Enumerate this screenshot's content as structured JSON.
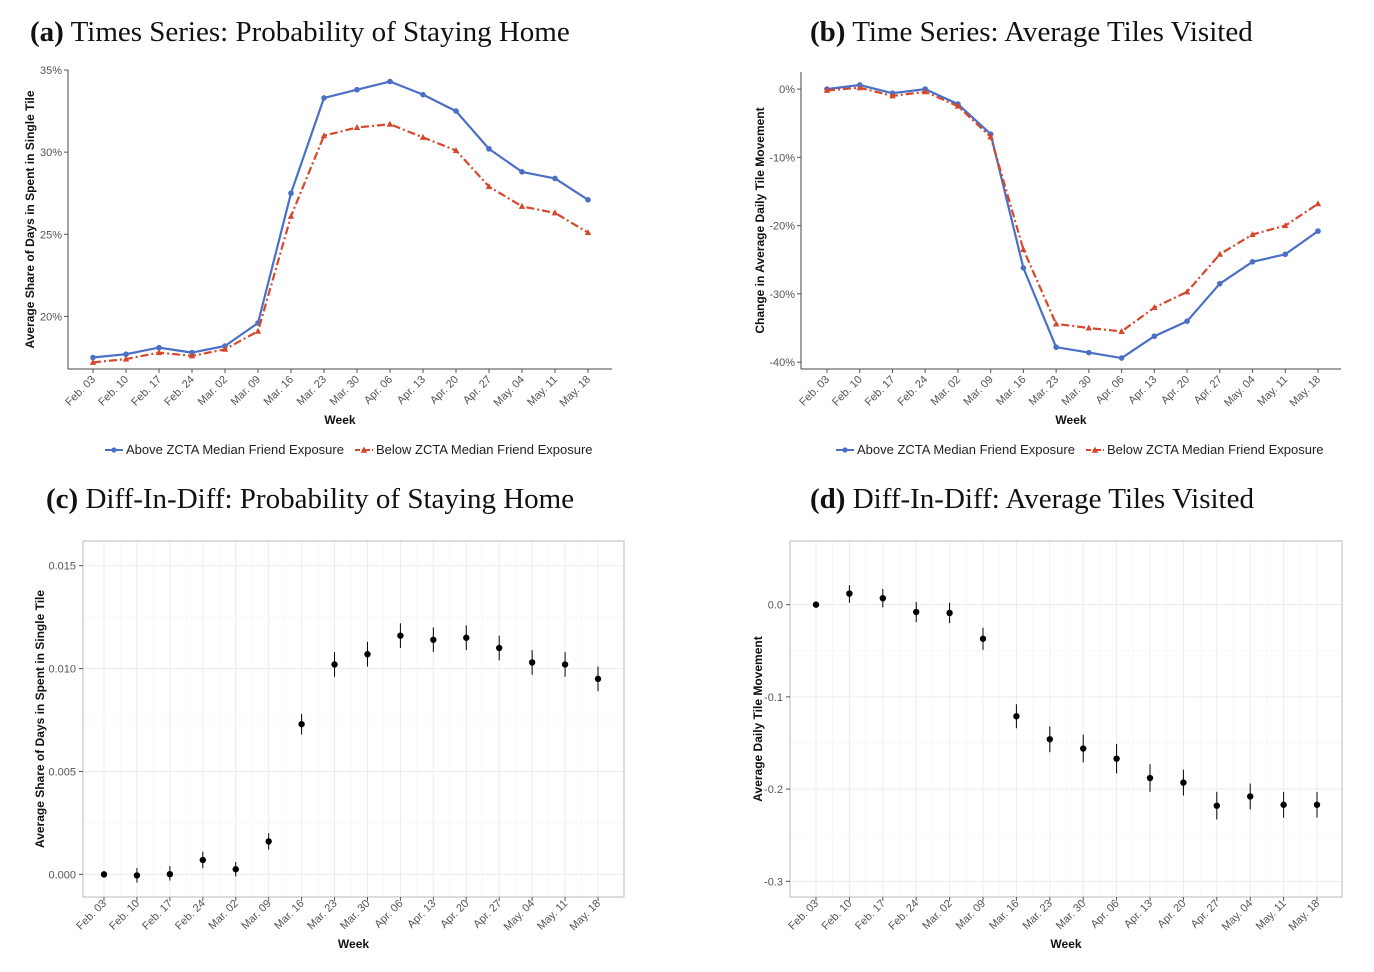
{
  "panels": [
    {
      "tag": "(a)",
      "title": "Times Series: Probability of Staying Home"
    },
    {
      "tag": "(b)",
      "title": "Time Series: Average Tiles Visited"
    },
    {
      "tag": "(c)",
      "title": "Diff-In-Diff: Probability of Staying Home"
    },
    {
      "tag": "(d)",
      "title": "Diff-In-Diff: Average Tiles Visited"
    }
  ],
  "legend": {
    "above": "Above ZCTA Median Friend Exposure",
    "below": "Below ZCTA Median Friend Exposure"
  },
  "colors": {
    "above": "#4a6fc7",
    "below": "#d6472b",
    "point": "#000000"
  },
  "chart_data": [
    {
      "type": "line",
      "categories": [
        "Feb. 03",
        "Feb. 10",
        "Feb. 17",
        "Feb. 24",
        "Mar. 02",
        "Mar. 09",
        "Mar. 16",
        "Mar. 23",
        "Mar. 30",
        "Apr. 06",
        "Apr. 13",
        "Apr. 20",
        "Apr. 27",
        "May. 04",
        "May. 11",
        "May. 18"
      ],
      "xlabel": "Week",
      "ylabel": "Average Share of Days in Spent in Single Tile",
      "ylim": [
        0.168,
        0.35
      ],
      "yticks": [
        0.2,
        0.25,
        0.3,
        0.35
      ],
      "ytick_labels": [
        "20%",
        "25%",
        "30%",
        "35%"
      ],
      "series": [
        {
          "name": "Above ZCTA Median Friend Exposure",
          "values": [
            0.175,
            0.177,
            0.181,
            0.178,
            0.182,
            0.196,
            0.275,
            0.333,
            0.338,
            0.343,
            0.335,
            0.325,
            0.302,
            0.288,
            0.284,
            0.271
          ]
        },
        {
          "name": "Below ZCTA Median Friend Exposure",
          "values": [
            0.172,
            0.174,
            0.178,
            0.176,
            0.18,
            0.191,
            0.261,
            0.31,
            0.315,
            0.317,
            0.309,
            0.301,
            0.279,
            0.267,
            0.263,
            0.251
          ]
        }
      ],
      "legend": "bottom",
      "grid": false
    },
    {
      "type": "line",
      "categories": [
        "Feb. 03",
        "Feb. 10",
        "Feb. 17",
        "Feb. 24",
        "Mar. 02",
        "Mar. 09",
        "Mar. 16",
        "Mar. 23",
        "Mar. 30",
        "Apr. 06",
        "Apr. 13",
        "Apr. 20",
        "Apr. 27",
        "May. 04",
        "May. 11",
        "May. 18"
      ],
      "xlabel": "Week",
      "ylabel": "Change in Average Daily Tile Movement",
      "ylim": [
        -0.41,
        0.025
      ],
      "yticks": [
        0,
        -0.1,
        -0.2,
        -0.3,
        -0.4
      ],
      "ytick_labels": [
        "0%",
        "-10%",
        "-20%",
        "-30%",
        "-40%"
      ],
      "series": [
        {
          "name": "Above ZCTA Median Friend Exposure",
          "values": [
            0.0,
            0.006,
            -0.006,
            0.0,
            -0.022,
            -0.066,
            -0.262,
            -0.378,
            -0.386,
            -0.394,
            -0.362,
            -0.34,
            -0.285,
            -0.253,
            -0.242,
            -0.208
          ]
        },
        {
          "name": "Below ZCTA Median Friend Exposure",
          "values": [
            -0.002,
            0.002,
            -0.01,
            -0.004,
            -0.025,
            -0.07,
            -0.235,
            -0.344,
            -0.35,
            -0.355,
            -0.32,
            -0.297,
            -0.242,
            -0.213,
            -0.2,
            -0.168
          ]
        }
      ],
      "legend": "bottom",
      "grid": false
    },
    {
      "type": "scatter",
      "categories": [
        "Feb. 03",
        "Feb. 10",
        "Feb. 17",
        "Feb. 24",
        "Mar. 02",
        "Mar. 09",
        "Mar. 16",
        "Mar. 23",
        "Mar. 30",
        "Apr. 06",
        "Apr. 13",
        "Apr. 20",
        "Apr. 27",
        "May. 04",
        "May. 11",
        "May. 18"
      ],
      "xlabel": "Week",
      "ylabel": "Average Share of Days in Spent in Single Tile",
      "ylim": [
        -0.0011,
        0.0162
      ],
      "yticks": [
        0.0,
        0.005,
        0.01,
        0.015
      ],
      "ytick_labels": [
        "0.000",
        "0.005",
        "0.010",
        "0.015"
      ],
      "values": [
        0.0,
        -5e-05,
        1e-05,
        0.0007,
        0.00025,
        0.0016,
        0.0073,
        0.0102,
        0.0107,
        0.0116,
        0.0114,
        0.0115,
        0.011,
        0.0103,
        0.0102,
        0.0095
      ],
      "ci_low": [
        0.0,
        -0.0004,
        -0.0003,
        0.0003,
        -0.0001,
        0.0012,
        0.0068,
        0.0096,
        0.0101,
        0.011,
        0.0108,
        0.0109,
        0.0104,
        0.0097,
        0.0096,
        0.0089
      ],
      "ci_high": [
        0.0,
        0.0003,
        0.0004,
        0.0011,
        0.0006,
        0.002,
        0.0078,
        0.0108,
        0.0113,
        0.0122,
        0.012,
        0.0121,
        0.0116,
        0.0109,
        0.0108,
        0.0101
      ],
      "grid": true
    },
    {
      "type": "scatter",
      "categories": [
        "Feb. 03",
        "Feb. 10",
        "Feb. 17",
        "Feb. 24",
        "Mar. 02",
        "Mar. 09",
        "Mar. 16",
        "Mar. 23",
        "Mar. 30",
        "Apr. 06",
        "Apr. 13",
        "Apr. 20",
        "Apr. 27",
        "May. 04",
        "May. 11",
        "May. 18"
      ],
      "xlabel": "Week",
      "ylabel": "Average Daily Tile Movement",
      "ylim": [
        -0.317,
        0.069
      ],
      "yticks": [
        0.0,
        -0.1,
        -0.2,
        -0.3
      ],
      "ytick_labels": [
        "0.0",
        "-0.1",
        "-0.2",
        "-0.3"
      ],
      "values": [
        0.0,
        0.012,
        0.007,
        -0.008,
        -0.009,
        -0.037,
        -0.121,
        -0.146,
        -0.156,
        -0.167,
        -0.188,
        -0.193,
        -0.218,
        -0.208,
        -0.217,
        -0.217
      ],
      "ci_low": [
        0.0,
        0.002,
        -0.003,
        -0.019,
        -0.02,
        -0.049,
        -0.134,
        -0.16,
        -0.171,
        -0.183,
        -0.203,
        -0.207,
        -0.233,
        -0.222,
        -0.231,
        -0.231
      ],
      "ci_high": [
        0.0,
        0.021,
        0.017,
        0.003,
        0.002,
        -0.025,
        -0.108,
        -0.132,
        -0.141,
        -0.151,
        -0.173,
        -0.179,
        -0.203,
        -0.194,
        -0.203,
        -0.203
      ],
      "grid": true
    }
  ]
}
